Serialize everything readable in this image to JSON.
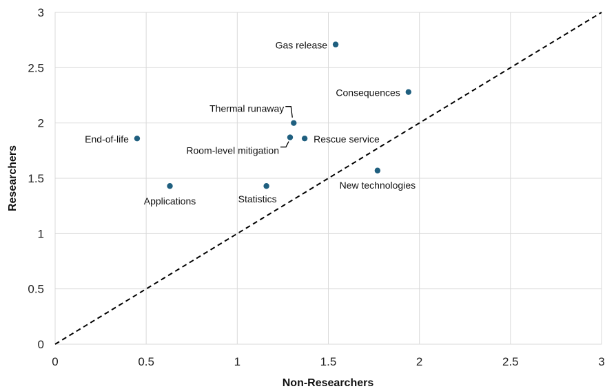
{
  "chart_data": {
    "type": "scatter",
    "title": "",
    "xlabel": "Non-Researchers",
    "ylabel": "Researchers",
    "xlim": [
      0,
      3
    ],
    "ylim": [
      0,
      3
    ],
    "x_ticks": [
      "0",
      "0.5",
      "1",
      "1.5",
      "2",
      "2.5",
      "3"
    ],
    "y_ticks": [
      "0",
      "0.5",
      "1",
      "1.5",
      "2",
      "2.5",
      "3"
    ],
    "grid": true,
    "legend": "none",
    "point_color": "#1f5f7f",
    "reference_line": {
      "from": [
        0,
        0
      ],
      "to": [
        3,
        3
      ],
      "style": "dashed"
    },
    "points": [
      {
        "label": "Gas release",
        "x": 1.54,
        "y": 2.71
      },
      {
        "label": "Consequences",
        "x": 1.94,
        "y": 2.28
      },
      {
        "label": "Thermal runaway",
        "x": 1.31,
        "y": 2.0
      },
      {
        "label": "End-of-life",
        "x": 0.45,
        "y": 1.86
      },
      {
        "label": "Room-level mitigation",
        "x": 1.29,
        "y": 1.87
      },
      {
        "label": "Rescue service",
        "x": 1.37,
        "y": 1.86
      },
      {
        "label": "New technologies",
        "x": 1.77,
        "y": 1.57
      },
      {
        "label": "Applications",
        "x": 0.63,
        "y": 1.43
      },
      {
        "label": "Statistics",
        "x": 1.16,
        "y": 1.43
      }
    ]
  }
}
